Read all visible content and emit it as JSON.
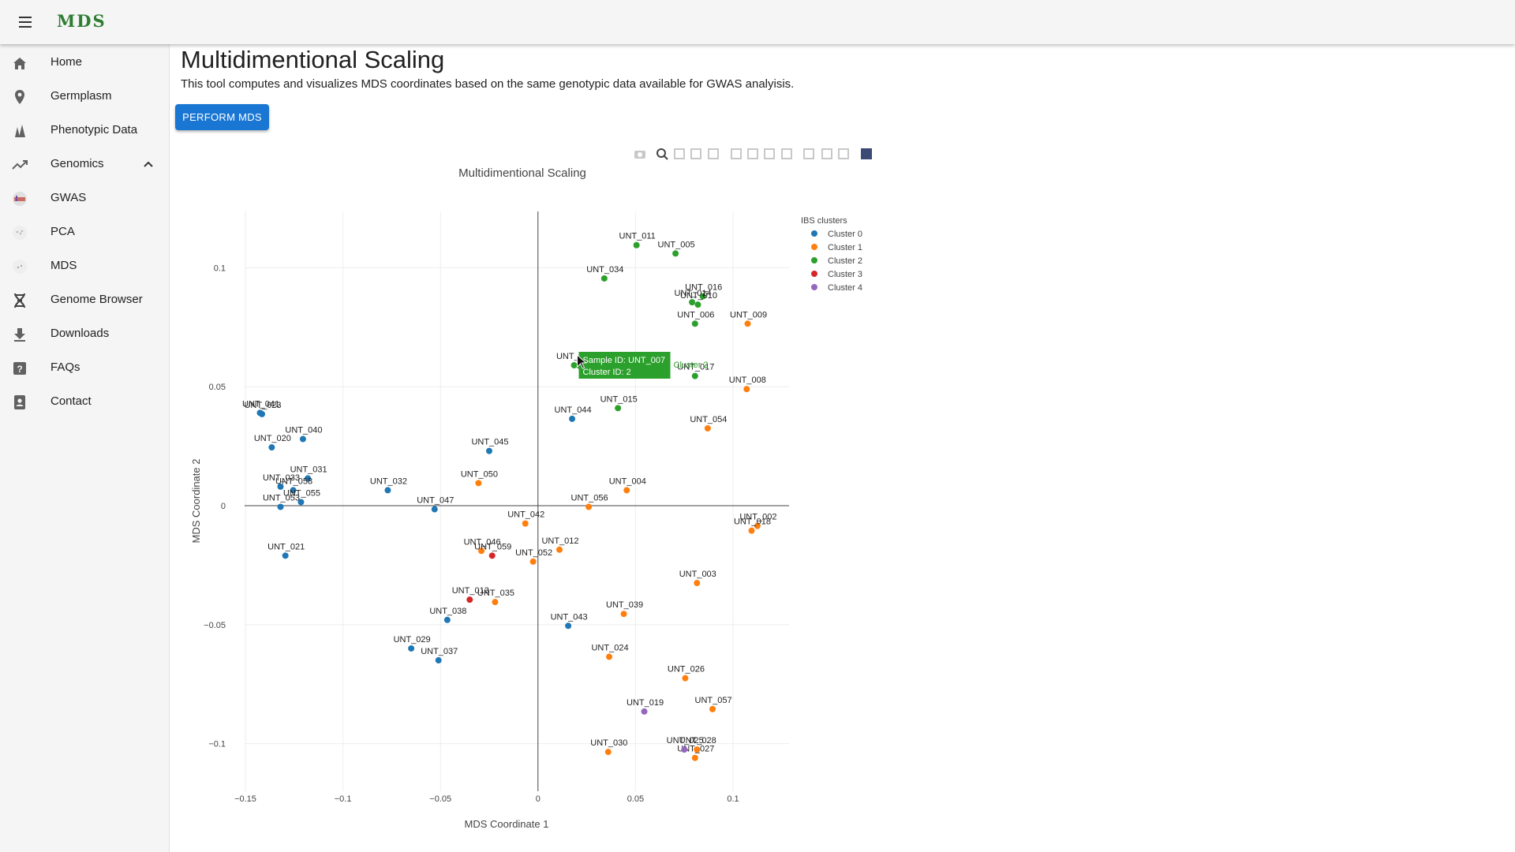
{
  "app": {
    "brand": "MDS"
  },
  "nav": {
    "items": [
      {
        "label": "Home",
        "icon": "home-icon"
      },
      {
        "label": "Germplasm",
        "icon": "location-pin-icon"
      },
      {
        "label": "Phenotypic Data",
        "icon": "plants-icon"
      },
      {
        "label": "Genomics",
        "icon": "trending-icon",
        "expanded": true
      },
      {
        "label": "GWAS",
        "icon": "gwas-thumbnail-icon"
      },
      {
        "label": "PCA",
        "icon": "pca-thumbnail-icon"
      },
      {
        "label": "MDS",
        "icon": "mds-thumbnail-icon"
      },
      {
        "label": "Genome Browser",
        "icon": "dna-icon"
      },
      {
        "label": "Downloads",
        "icon": "download-icon"
      },
      {
        "label": "FAQs",
        "icon": "help-icon"
      },
      {
        "label": "Contact",
        "icon": "contact-icon"
      }
    ]
  },
  "page": {
    "title": "Multidimentional Scaling",
    "description": "This tool computes and visualizes MDS coordinates based on the same genotypic data available for GWAS analyisis.",
    "perform_button": "PERFORM MDS"
  },
  "modebar": {
    "buttons": [
      "camera-icon",
      "zoom-icon",
      "pan-icon",
      "box-select-icon",
      "lasso-icon",
      "zoom-in-icon",
      "zoom-out-icon",
      "autoscale-icon",
      "reset-axes-icon",
      "spike-lines-icon",
      "hover-closest-icon",
      "hover-compare-icon",
      "plotly-logo-icon"
    ]
  },
  "tooltip": {
    "line1": "Sample ID: UNT_007",
    "line2": "Cluster  ID:  2",
    "cluster_label": "Cluster 2",
    "color": "#2ca02c"
  },
  "chart_data": {
    "type": "scatter",
    "title": "Multidimentional Scaling",
    "xlabel": "MDS Coordinate 1",
    "ylabel": "MDS Coordinate 2",
    "xlim": [
      -0.15,
      0.13
    ],
    "ylim": [
      -0.12,
      0.125
    ],
    "xticks": [
      -0.15,
      -0.1,
      -0.05,
      0,
      0.05,
      0.1
    ],
    "xtick_labels": [
      "−0.15",
      "−0.1",
      "−0.05",
      "0",
      "0.05",
      "0.1"
    ],
    "yticks": [
      0.1,
      0.05,
      0,
      -0.05,
      -0.1
    ],
    "ytick_labels": [
      "0.1",
      "0.05",
      "0",
      "−0.05",
      "−0.1"
    ],
    "grid": true,
    "legend_title": "IBS clusters",
    "legend_position": "top-right",
    "series": [
      {
        "name": "Cluster 0",
        "color": "#1f77b4",
        "points": [
          {
            "label": "UNT_041",
            "x": -0.1425,
            "y": 0.039
          },
          {
            "label": "UNT_023",
            "x": -0.1415,
            "y": 0.0385
          },
          {
            "label": "UNT_040",
            "x": -0.1205,
            "y": 0.028
          },
          {
            "label": "UNT_020",
            "x": -0.1365,
            "y": 0.0245
          },
          {
            "label": "UNT_031",
            "x": -0.118,
            "y": 0.0115
          },
          {
            "label": "UNT_033",
            "x": -0.132,
            "y": 0.008
          },
          {
            "label": "UNT_058",
            "x": -0.1255,
            "y": 0.0065
          },
          {
            "label": "UNT_055",
            "x": -0.1215,
            "y": 0.0015
          },
          {
            "label": "UNT_053",
            "x": -0.132,
            "y": -0.0005
          },
          {
            "label": "UNT_032",
            "x": -0.077,
            "y": 0.0065
          },
          {
            "label": "UNT_047",
            "x": -0.053,
            "y": -0.0015
          },
          {
            "label": "UNT_021",
            "x": -0.1295,
            "y": -0.021
          },
          {
            "label": "UNT_045",
            "x": -0.025,
            "y": 0.023
          },
          {
            "label": "UNT_044",
            "x": 0.0175,
            "y": 0.0365
          },
          {
            "label": "UNT_038",
            "x": -0.0465,
            "y": -0.048
          },
          {
            "label": "UNT_029",
            "x": -0.065,
            "y": -0.06
          },
          {
            "label": "UNT_037",
            "x": -0.051,
            "y": -0.065
          },
          {
            "label": "UNT_043",
            "x": 0.0155,
            "y": -0.0505
          }
        ]
      },
      {
        "name": "Cluster 1",
        "color": "#ff7f0e",
        "points": [
          {
            "label": "UNT_009",
            "x": 0.1075,
            "y": 0.0765
          },
          {
            "label": "UNT_008",
            "x": 0.107,
            "y": 0.049
          },
          {
            "label": "UNT_054",
            "x": 0.087,
            "y": 0.0325
          },
          {
            "label": "UNT_050",
            "x": -0.0305,
            "y": 0.0095
          },
          {
            "label": "UNT_004",
            "x": 0.0455,
            "y": 0.0065
          },
          {
            "label": "UNT_056",
            "x": 0.026,
            "y": -0.0005
          },
          {
            "label": "UNT_042",
            "x": -0.0065,
            "y": -0.0075
          },
          {
            "label": "UNT_002",
            "x": 0.1125,
            "y": -0.0085
          },
          {
            "label": "UNT_018",
            "x": 0.1095,
            "y": -0.0105
          },
          {
            "label": "UNT_046",
            "x": -0.029,
            "y": -0.019
          },
          {
            "label": "UNT_012",
            "x": 0.011,
            "y": -0.0185
          },
          {
            "label": "UNT_052",
            "x": -0.0025,
            "y": -0.0235
          },
          {
            "label": "UNT_003",
            "x": 0.0815,
            "y": -0.0325
          },
          {
            "label": "UNT_035",
            "x": -0.022,
            "y": -0.0405
          },
          {
            "label": "UNT_039",
            "x": 0.044,
            "y": -0.0455
          },
          {
            "label": "UNT_024",
            "x": 0.0365,
            "y": -0.0635
          },
          {
            "label": "UNT_026",
            "x": 0.0755,
            "y": -0.0725
          },
          {
            "label": "UNT_057",
            "x": 0.0895,
            "y": -0.0855
          },
          {
            "label": "UNT_030",
            "x": 0.036,
            "y": -0.1035
          },
          {
            "label": "UNT_028",
            "x": 0.0815,
            "y": -0.1025
          },
          {
            "label": "UNT_027",
            "x": 0.0805,
            "y": -0.106
          }
        ]
      },
      {
        "name": "Cluster 2",
        "color": "#2ca02c",
        "points": [
          {
            "label": "UNT_011",
            "x": 0.0505,
            "y": 0.1095
          },
          {
            "label": "UNT_005",
            "x": 0.0705,
            "y": 0.106
          },
          {
            "label": "UNT_034",
            "x": 0.034,
            "y": 0.0955
          },
          {
            "label": "UNT_016",
            "x": 0.0845,
            "y": 0.088
          },
          {
            "label": "UNT_014",
            "x": 0.079,
            "y": 0.0855
          },
          {
            "label": "UNT_010",
            "x": 0.082,
            "y": 0.0845
          },
          {
            "label": "UNT_006",
            "x": 0.0805,
            "y": 0.0765
          },
          {
            "label": "UNT_007",
            "x": 0.0185,
            "y": 0.059
          },
          {
            "label": "UNT_017",
            "x": 0.0805,
            "y": 0.0545
          },
          {
            "label": "UNT_015",
            "x": 0.041,
            "y": 0.041
          }
        ]
      },
      {
        "name": "Cluster 3",
        "color": "#d62728",
        "points": [
          {
            "label": "UNT_059",
            "x": -0.0235,
            "y": -0.021
          },
          {
            "label": "UNT_013",
            "x": -0.035,
            "y": -0.0395
          }
        ]
      },
      {
        "name": "Cluster 4",
        "color": "#9467bd",
        "points": [
          {
            "label": "UNT_019",
            "x": 0.0545,
            "y": -0.0865
          },
          {
            "label": "UNT_025",
            "x": 0.075,
            "y": -0.1025
          }
        ]
      }
    ]
  }
}
